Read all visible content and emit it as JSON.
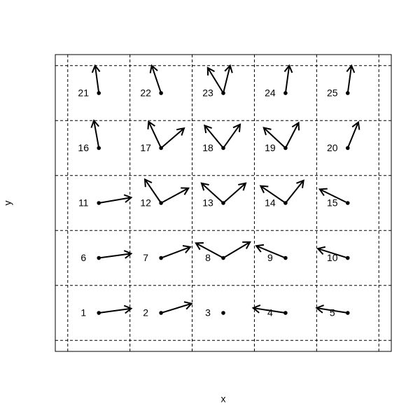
{
  "chart_data": {
    "type": "vector",
    "xlabel": "x",
    "ylabel": "y",
    "xlim": [
      0.3,
      5.7
    ],
    "ylim": [
      0.3,
      5.7
    ],
    "xgrid": [
      0.5,
      1.5,
      2.5,
      3.5,
      4.5,
      5.5
    ],
    "ygrid": [
      0.5,
      1.5,
      2.5,
      3.5,
      4.5,
      5.5
    ],
    "points": [
      {
        "label": "1",
        "x": 1,
        "y": 1,
        "arrows": [
          {
            "dx": 0.52,
            "dy": 0.08
          }
        ]
      },
      {
        "label": "2",
        "x": 2,
        "y": 1,
        "arrows": [
          {
            "dx": 0.49,
            "dy": 0.17
          }
        ]
      },
      {
        "label": "3",
        "x": 3,
        "y": 1,
        "arrows": []
      },
      {
        "label": "4",
        "x": 4,
        "y": 1,
        "arrows": [
          {
            "dx": -0.52,
            "dy": 0.09
          }
        ]
      },
      {
        "label": "5",
        "x": 5,
        "y": 1,
        "arrows": [
          {
            "dx": -0.5,
            "dy": 0.09
          }
        ]
      },
      {
        "label": "6",
        "x": 1,
        "y": 2,
        "arrows": [
          {
            "dx": 0.52,
            "dy": 0.08
          }
        ]
      },
      {
        "label": "7",
        "x": 2,
        "y": 2,
        "arrows": [
          {
            "dx": 0.47,
            "dy": 0.2
          }
        ]
      },
      {
        "label": "8",
        "x": 3,
        "y": 2,
        "arrows": [
          {
            "dx": -0.44,
            "dy": 0.27
          },
          {
            "dx": 0.43,
            "dy": 0.29
          }
        ]
      },
      {
        "label": "9",
        "x": 4,
        "y": 2,
        "arrows": [
          {
            "dx": -0.47,
            "dy": 0.22
          }
        ]
      },
      {
        "label": "10",
        "x": 5,
        "y": 2,
        "arrows": [
          {
            "dx": -0.48,
            "dy": 0.17
          }
        ]
      },
      {
        "label": "11",
        "x": 1,
        "y": 3,
        "arrows": [
          {
            "dx": 0.52,
            "dy": 0.1
          }
        ]
      },
      {
        "label": "12",
        "x": 2,
        "y": 3,
        "arrows": [
          {
            "dx": -0.26,
            "dy": 0.43
          },
          {
            "dx": 0.44,
            "dy": 0.27
          }
        ]
      },
      {
        "label": "13",
        "x": 3,
        "y": 3,
        "arrows": [
          {
            "dx": -0.35,
            "dy": 0.36
          },
          {
            "dx": 0.36,
            "dy": 0.36
          }
        ]
      },
      {
        "label": "14",
        "x": 4,
        "y": 3,
        "arrows": [
          {
            "dx": -0.4,
            "dy": 0.31
          },
          {
            "dx": 0.29,
            "dy": 0.41
          }
        ]
      },
      {
        "label": "15",
        "x": 5,
        "y": 3,
        "arrows": [
          {
            "dx": -0.45,
            "dy": 0.25
          }
        ]
      },
      {
        "label": "16",
        "x": 1,
        "y": 4,
        "arrows": [
          {
            "dx": -0.08,
            "dy": 0.5
          }
        ]
      },
      {
        "label": "17",
        "x": 2,
        "y": 4,
        "arrows": [
          {
            "dx": -0.2,
            "dy": 0.48
          },
          {
            "dx": 0.37,
            "dy": 0.36
          }
        ]
      },
      {
        "label": "18",
        "x": 3,
        "y": 4,
        "arrows": [
          {
            "dx": -0.3,
            "dy": 0.41
          },
          {
            "dx": 0.27,
            "dy": 0.43
          }
        ]
      },
      {
        "label": "19",
        "x": 4,
        "y": 4,
        "arrows": [
          {
            "dx": -0.35,
            "dy": 0.37
          },
          {
            "dx": 0.21,
            "dy": 0.46
          }
        ]
      },
      {
        "label": "20",
        "x": 5,
        "y": 4,
        "arrows": [
          {
            "dx": 0.17,
            "dy": 0.47
          }
        ]
      },
      {
        "label": "21",
        "x": 1,
        "y": 5,
        "arrows": [
          {
            "dx": -0.06,
            "dy": 0.5
          }
        ]
      },
      {
        "label": "22",
        "x": 2,
        "y": 5,
        "arrows": [
          {
            "dx": -0.15,
            "dy": 0.5
          }
        ]
      },
      {
        "label": "23",
        "x": 3,
        "y": 5,
        "arrows": [
          {
            "dx": -0.25,
            "dy": 0.46
          },
          {
            "dx": 0.11,
            "dy": 0.5
          }
        ]
      },
      {
        "label": "24",
        "x": 4,
        "y": 5,
        "arrows": [
          {
            "dx": 0.06,
            "dy": 0.5
          }
        ]
      },
      {
        "label": "25",
        "x": 5,
        "y": 5,
        "arrows": [
          {
            "dx": 0.06,
            "dy": 0.5
          }
        ]
      }
    ]
  }
}
